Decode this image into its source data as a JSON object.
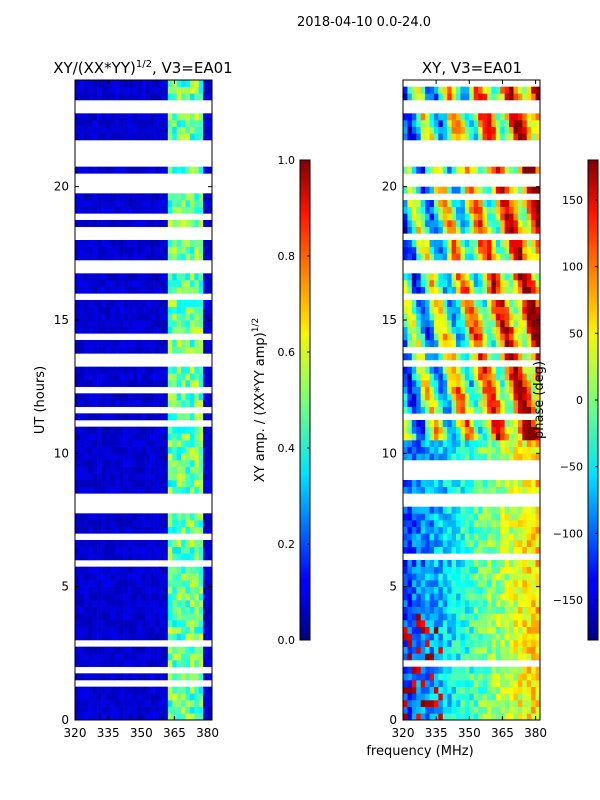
{
  "suptitle": "2018-04-10 0.0-24.0",
  "xlabel_shared": "frequency (MHz)",
  "chart_data": [
    {
      "type": "heatmap",
      "name": "amplitude-ratio",
      "title": "XY/(XX*YY)",
      "title_exponent": "1/2",
      "title_suffix": ", V3=EA01",
      "ylabel": "UT (hours)",
      "xlim": [
        320,
        382
      ],
      "ylim": [
        0,
        24
      ],
      "xticks": [
        320,
        335,
        350,
        365,
        380
      ],
      "yticks": [
        0,
        5,
        10,
        15,
        20
      ],
      "colormap": "jet",
      "colorbar": {
        "label": "XY amp. / (XX*YY amp)",
        "label_exponent": "1/2",
        "range": [
          0.0,
          1.0
        ],
        "ticks": [
          "0.0",
          "0.2",
          "0.4",
          "0.6",
          "0.8",
          "1.0"
        ],
        "tick_values": [
          0.0,
          0.2,
          0.4,
          0.6,
          0.8,
          1.0
        ]
      },
      "typical_values": {
        "baseline": 0.08,
        "bright_channels_MHz": [
          365,
          370,
          375
        ],
        "bright_level": 0.45
      },
      "missing_time_ranges_hours": [
        [
          0.9,
          1.1
        ],
        [
          3.9,
          4.1
        ],
        [
          8.0,
          8.4
        ],
        [
          9.9,
          10.1
        ],
        [
          11.9,
          12.1
        ],
        [
          13.2,
          13.4
        ],
        [
          16.8,
          17.2
        ],
        [
          18.1,
          18.3
        ],
        [
          19.9,
          20.5
        ],
        [
          20.7,
          21.8
        ],
        [
          22.8,
          23.3
        ]
      ]
    },
    {
      "type": "heatmap",
      "name": "phase",
      "title": "XY, V3=EA01",
      "xlim": [
        320,
        382
      ],
      "ylim": [
        0,
        24
      ],
      "xticks": [
        320,
        335,
        350,
        365,
        380
      ],
      "yticks": [
        0,
        5,
        10,
        15,
        20
      ],
      "colormap": "jet",
      "colorbar": {
        "label": "phase (deg)",
        "range": [
          -180,
          180
        ],
        "ticks": [
          "150",
          "100",
          "50",
          "0",
          "−50",
          "−100",
          "−150"
        ],
        "tick_values": [
          150,
          100,
          50,
          0,
          -50,
          -100,
          -150
        ]
      },
      "missing_time_ranges_hours": [
        [
          0.9,
          1.1
        ],
        [
          3.9,
          4.1
        ],
        [
          8.0,
          8.4
        ],
        [
          9.9,
          10.1
        ],
        [
          11.9,
          12.1
        ],
        [
          13.2,
          13.4
        ],
        [
          16.8,
          17.2
        ],
        [
          18.1,
          18.3
        ],
        [
          19.9,
          20.5
        ],
        [
          20.7,
          21.8
        ],
        [
          22.8,
          23.3
        ]
      ]
    }
  ]
}
